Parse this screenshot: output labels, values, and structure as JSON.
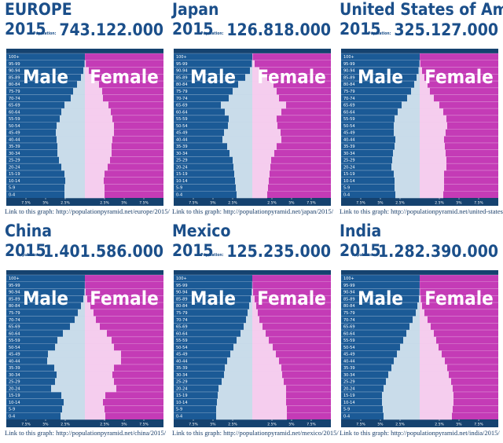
{
  "chart_data": [
    {
      "type": "pyramid",
      "title": "EUROPE",
      "subtitle": "2015",
      "population_label": "Population:",
      "population": "743.122.000",
      "categories": [
        "0-4",
        "5-9",
        "10-14",
        "15-19",
        "20-24",
        "25-29",
        "30-34",
        "35-39",
        "40-44",
        "45-49",
        "50-54",
        "55-59",
        "60-64",
        "65-69",
        "70-74",
        "75-79",
        "80-84",
        "85-89",
        "90-94",
        "95-99",
        "100+"
      ],
      "series": [
        {
          "name": "Male",
          "color": "#c9dcea",
          "values": [
            2.6,
            2.6,
            2.5,
            2.6,
            3.0,
            3.3,
            3.5,
            3.5,
            3.6,
            3.7,
            3.6,
            3.2,
            3.0,
            2.6,
            1.8,
            1.5,
            1.0,
            0.5,
            0.2,
            0.04,
            0
          ]
        },
        {
          "name": "Female",
          "color": "#f5cdee",
          "values": [
            2.5,
            2.5,
            2.4,
            2.5,
            2.9,
            3.2,
            3.4,
            3.4,
            3.5,
            3.7,
            3.7,
            3.5,
            3.3,
            3.0,
            2.3,
            2.2,
            1.8,
            1.1,
            0.5,
            0.12,
            0.01
          ]
        }
      ],
      "xlim": [
        0,
        10
      ],
      "xticks": [
        {
          "value": 2.5,
          "label": "2.5%"
        },
        {
          "value": 5,
          "label": "5%"
        },
        {
          "value": 7.5,
          "label": "7.5%"
        }
      ],
      "link": "Link to this graph: http://populationpyramid.net/europe/2015/"
    },
    {
      "type": "pyramid",
      "title": "Japan",
      "subtitle": "2015",
      "population_label": "Population:",
      "population": "126.818.000",
      "categories": [
        "0-4",
        "5-9",
        "10-14",
        "15-19",
        "20-24",
        "25-29",
        "30-34",
        "35-39",
        "40-44",
        "45-49",
        "50-54",
        "55-59",
        "60-64",
        "65-69",
        "70-74",
        "75-79",
        "80-84",
        "85-89",
        "90-94",
        "95-99",
        "100+"
      ],
      "series": [
        {
          "name": "Male",
          "color": "#c9dcea",
          "values": [
            2.0,
            2.1,
            2.2,
            2.3,
            2.4,
            2.5,
            2.9,
            3.2,
            3.8,
            3.6,
            3.1,
            3.0,
            3.5,
            4.0,
            3.0,
            2.5,
            1.8,
            0.9,
            0.3,
            0.05,
            0
          ]
        },
        {
          "name": "Female",
          "color": "#f5cdee",
          "values": [
            1.9,
            2.0,
            2.1,
            2.2,
            2.3,
            2.4,
            2.8,
            3.1,
            3.7,
            3.6,
            3.2,
            3.1,
            3.7,
            4.3,
            3.4,
            3.1,
            2.7,
            1.9,
            0.9,
            0.3,
            0.05
          ]
        }
      ],
      "xlim": [
        0,
        10
      ],
      "xticks": [
        {
          "value": 2.5,
          "label": "2.5%"
        },
        {
          "value": 5,
          "label": "5%"
        },
        {
          "value": 7.5,
          "label": "7.5%"
        }
      ],
      "link": "Link to this graph: http://populationpyramid.net/japan/2015/"
    },
    {
      "type": "pyramid",
      "title": "United States of America",
      "subtitle": "2015",
      "population_label": "Population:",
      "population": "325.127.000",
      "categories": [
        "0-4",
        "5-9",
        "10-14",
        "15-19",
        "20-24",
        "25-29",
        "30-34",
        "35-39",
        "40-44",
        "45-49",
        "50-54",
        "55-59",
        "60-64",
        "65-69",
        "70-74",
        "75-79",
        "80-84",
        "85-89",
        "90-94",
        "95-99",
        "100+"
      ],
      "series": [
        {
          "name": "Male",
          "color": "#c9dcea",
          "values": [
            3.1,
            3.2,
            3.2,
            3.3,
            3.6,
            3.5,
            3.4,
            3.2,
            3.1,
            3.3,
            3.3,
            3.2,
            2.8,
            2.3,
            1.6,
            1.1,
            0.7,
            0.4,
            0.15,
            0.03,
            0
          ]
        },
        {
          "name": "Female",
          "color": "#f5cdee",
          "values": [
            3.0,
            3.1,
            3.1,
            3.1,
            3.4,
            3.4,
            3.3,
            3.2,
            3.1,
            3.3,
            3.5,
            3.4,
            3.0,
            2.5,
            1.8,
            1.3,
            1.0,
            0.6,
            0.3,
            0.08,
            0.01
          ]
        }
      ],
      "xlim": [
        0,
        10
      ],
      "xticks": [
        {
          "value": 2.5,
          "label": "2.5%"
        },
        {
          "value": 5,
          "label": "5%"
        },
        {
          "value": 7.5,
          "label": "7.5%"
        }
      ],
      "link": "Link to this graph: http://populationpyramid.net/united-states-of"
    },
    {
      "type": "pyramid",
      "title": "China",
      "subtitle": "2015",
      "population_label": "Population:",
      "population": "1.401.586.000",
      "categories": [
        "0-4",
        "5-9",
        "10-14",
        "15-19",
        "20-24",
        "25-29",
        "30-34",
        "35-39",
        "40-44",
        "45-49",
        "50-54",
        "55-59",
        "60-64",
        "65-69",
        "70-74",
        "75-79",
        "80-84",
        "85-89",
        "90-94",
        "95-99",
        "100+"
      ],
      "series": [
        {
          "name": "Male",
          "color": "#c9dcea",
          "values": [
            3.1,
            2.9,
            2.7,
            3.0,
            4.3,
            3.8,
            3.6,
            3.9,
            4.8,
            4.7,
            3.8,
            3.5,
            2.8,
            1.9,
            1.3,
            0.9,
            0.5,
            0.2,
            0.05,
            0.01,
            0
          ]
        },
        {
          "name": "Female",
          "color": "#f5cdee",
          "values": [
            2.6,
            2.5,
            2.3,
            2.6,
            4.0,
            3.7,
            3.5,
            3.7,
            4.6,
            4.6,
            3.7,
            3.4,
            2.8,
            1.9,
            1.4,
            1.1,
            0.7,
            0.3,
            0.1,
            0.02,
            0
          ]
        }
      ],
      "xlim": [
        0,
        10
      ],
      "xticks": [
        {
          "value": 2.5,
          "label": "2.5%"
        },
        {
          "value": 5,
          "label": "5%"
        },
        {
          "value": 7.5,
          "label": "7.5%"
        }
      ],
      "link": "Link to this graph: http://populationpyramid.net/china/2015/"
    },
    {
      "type": "pyramid",
      "title": "Mexico",
      "subtitle": "2015",
      "population_label": "Population:",
      "population": "125.235.000",
      "categories": [
        "0-4",
        "5-9",
        "10-14",
        "15-19",
        "20-24",
        "25-29",
        "30-34",
        "35-39",
        "40-44",
        "45-49",
        "50-54",
        "55-59",
        "60-64",
        "65-69",
        "70-74",
        "75-79",
        "80-84",
        "85-89",
        "90-94",
        "95-99",
        "100+"
      ],
      "series": [
        {
          "name": "Male",
          "color": "#c9dcea",
          "values": [
            4.6,
            4.6,
            4.5,
            4.4,
            4.3,
            3.9,
            3.6,
            3.5,
            3.2,
            2.8,
            2.4,
            2.0,
            1.5,
            1.1,
            0.8,
            0.6,
            0.4,
            0.2,
            0.07,
            0.02,
            0
          ]
        },
        {
          "name": "Female",
          "color": "#f5cdee",
          "values": [
            4.4,
            4.4,
            4.3,
            4.3,
            4.3,
            4.0,
            3.8,
            3.7,
            3.4,
            3.0,
            2.6,
            2.1,
            1.7,
            1.3,
            0.9,
            0.7,
            0.5,
            0.3,
            0.1,
            0.03,
            0
          ]
        }
      ],
      "xlim": [
        0,
        10
      ],
      "xticks": [
        {
          "value": 2.5,
          "label": "2.5%"
        },
        {
          "value": 5,
          "label": "5%"
        },
        {
          "value": 7.5,
          "label": "7.5%"
        }
      ],
      "link": "Link to this graph: http://populationpyramid.net/mexico/2015/"
    },
    {
      "type": "pyramid",
      "title": "India",
      "subtitle": "2015",
      "population_label": "Population:",
      "population": "1.282.390.000",
      "categories": [
        "0-4",
        "5-9",
        "10-14",
        "15-19",
        "20-24",
        "25-29",
        "30-34",
        "35-39",
        "40-44",
        "45-49",
        "50-54",
        "55-59",
        "60-64",
        "65-69",
        "70-74",
        "75-79",
        "80-84",
        "85-89",
        "90-94",
        "95-99",
        "100+"
      ],
      "series": [
        {
          "name": "Male",
          "color": "#c9dcea",
          "values": [
            4.6,
            4.7,
            4.8,
            4.8,
            4.6,
            4.3,
            4.0,
            3.6,
            3.3,
            2.9,
            2.5,
            2.1,
            1.7,
            1.3,
            0.9,
            0.5,
            0.3,
            0.1,
            0.03,
            0.01,
            0
          ]
        },
        {
          "name": "Female",
          "color": "#f5cdee",
          "values": [
            4.1,
            4.2,
            4.3,
            4.3,
            4.2,
            4.0,
            3.7,
            3.5,
            3.2,
            2.8,
            2.4,
            2.1,
            1.8,
            1.4,
            1.0,
            0.6,
            0.3,
            0.15,
            0.04,
            0.01,
            0
          ]
        }
      ],
      "xlim": [
        0,
        10
      ],
      "xticks": [
        {
          "value": 2.5,
          "label": "2.5%"
        },
        {
          "value": 5,
          "label": "5%"
        },
        {
          "value": 7.5,
          "label": "7.5%"
        }
      ],
      "link": "Link to this graph: http://populationpyramid.net/india/2015/"
    }
  ]
}
